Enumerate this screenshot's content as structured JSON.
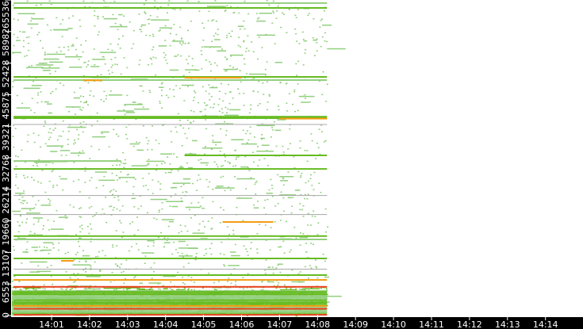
{
  "chart_data": {
    "type": "heatmap",
    "title": "",
    "xlabel": "",
    "ylabel": "",
    "x_axis": {
      "range": [
        "14:00:00",
        "14:14:30"
      ],
      "data_end": "14:08:15",
      "tick_labels": [
        "14:01",
        "14:02",
        "14:03",
        "14:04",
        "14:05",
        "14:06",
        "14:07",
        "14:08",
        "14:09",
        "14:10",
        "14:11",
        "14:12",
        "14:13",
        "14:14"
      ]
    },
    "y_axis": {
      "range": [
        0,
        65536
      ],
      "tick_values": [
        0,
        6553,
        13107,
        19660,
        26214,
        32768,
        39321,
        45875,
        52428,
        58982,
        65536
      ],
      "tick_labels": [
        "0",
        "6553",
        "13107",
        "19660",
        "26214",
        "32768",
        "39321",
        "45875",
        "52428",
        "58982",
        "65536"
      ]
    },
    "colors": {
      "low": "#93cf7f",
      "mid": "#66bb22",
      "high": "#f39c12",
      "peak": "#e8401c",
      "idle": "#a8a8a8",
      "axis_bg": "#000000",
      "axis_text": "#ffffff"
    },
    "flows": [
      {
        "port": 64900,
        "start": "14:00",
        "end": "14:08:15",
        "level": "low"
      },
      {
        "port": 63890,
        "start": "14:00",
        "end": "14:08:15",
        "level": "mid"
      },
      {
        "port": 49560,
        "start": "14:00",
        "end": "14:08:15",
        "level": "mid"
      },
      {
        "port": 49400,
        "start": "14:04:30",
        "end": "14:06:00",
        "level": "high"
      },
      {
        "port": 48900,
        "start": "14:00",
        "end": "14:08:15",
        "level": "low"
      },
      {
        "port": 48850,
        "start": "14:01:50",
        "end": "14:02:20",
        "level": "high"
      },
      {
        "port": 41300,
        "start": "14:00",
        "end": "14:08:15",
        "level": "mid"
      },
      {
        "port": 41000,
        "start": "14:00",
        "end": "14:08:15",
        "level": "mid"
      },
      {
        "port": 40900,
        "start": "14:07:00",
        "end": "14:08:15",
        "level": "high"
      },
      {
        "port": 39600,
        "start": "14:00",
        "end": "14:08:15",
        "level": "idle"
      },
      {
        "port": 33260,
        "start": "14:04:30",
        "end": "14:08:15",
        "level": "mid"
      },
      {
        "port": 32100,
        "start": "14:00",
        "end": "14:02:50",
        "level": "low"
      },
      {
        "port": 30450,
        "start": "14:00",
        "end": "14:08:15",
        "level": "mid"
      },
      {
        "port": 24850,
        "start": "14:00",
        "end": "14:08:15",
        "level": "idle"
      },
      {
        "port": 20900,
        "start": "14:00",
        "end": "14:08:15",
        "level": "idle"
      },
      {
        "port": 19430,
        "start": "14:05:30",
        "end": "14:06:50",
        "level": "high"
      },
      {
        "port": 16500,
        "start": "14:00",
        "end": "14:08:15",
        "level": "mid"
      },
      {
        "port": 15800,
        "start": "14:00",
        "end": "14:08:15",
        "level": "low"
      },
      {
        "port": 11860,
        "start": "14:00",
        "end": "14:08:15",
        "level": "mid"
      },
      {
        "port": 11360,
        "start": "14:01:15",
        "end": "14:01:35",
        "level": "high"
      },
      {
        "port": 9550,
        "start": "14:00",
        "end": "14:08:15",
        "level": "idle"
      },
      {
        "port": 8400,
        "start": "14:00",
        "end": "14:08:15",
        "level": "mid"
      },
      {
        "port": 7400,
        "start": "14:00",
        "end": "14:08:15",
        "level": "high"
      },
      {
        "port": 5960,
        "start": "14:00",
        "end": "14:08:15",
        "level": "peak"
      },
      {
        "port": 4900,
        "start": "14:00",
        "end": "14:08:15",
        "level": "mid"
      },
      {
        "port": 4400,
        "start": "14:00",
        "end": "14:08:15",
        "level": "mid"
      },
      {
        "port": 3800,
        "start": "14:00",
        "end": "14:08:15",
        "level": "low"
      },
      {
        "port": 3200,
        "start": "14:00",
        "end": "14:08:15",
        "level": "mid"
      },
      {
        "port": 2600,
        "start": "14:00",
        "end": "14:08:15",
        "level": "mid"
      },
      {
        "port": 2000,
        "start": "14:00",
        "end": "14:08:15",
        "level": "high"
      },
      {
        "port": 1400,
        "start": "14:00",
        "end": "14:08:15",
        "level": "peak"
      },
      {
        "port": 700,
        "start": "14:00",
        "end": "14:08:15",
        "level": "low"
      },
      {
        "port": 150,
        "start": "14:00",
        "end": "14:08:15",
        "level": "peak"
      }
    ]
  }
}
